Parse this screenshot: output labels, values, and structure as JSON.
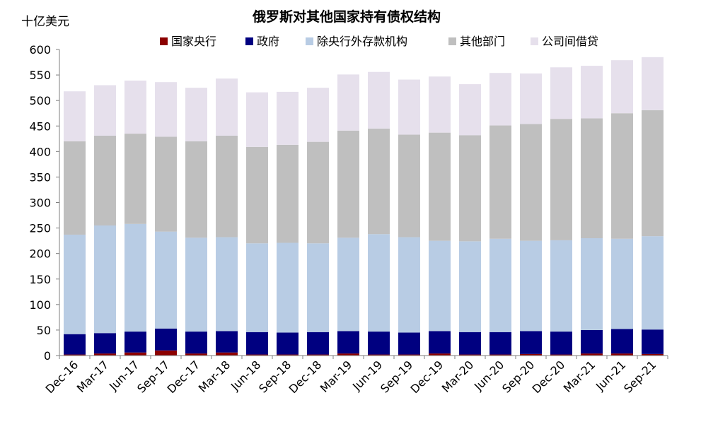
{
  "chart_data": {
    "type": "bar",
    "stacked": true,
    "title": "俄罗斯对其他国家持有债权结构",
    "ylabel": "十亿美元",
    "xlabel": "",
    "ylim": [
      0,
      600
    ],
    "yticks": [
      0,
      50,
      100,
      150,
      200,
      250,
      300,
      350,
      400,
      450,
      500,
      550,
      600
    ],
    "grid": false,
    "legend_position": "top",
    "categories": [
      "Dec-16",
      "Mar-17",
      "Jun-17",
      "Sep-17",
      "Dec-17",
      "Mar-18",
      "Jun-18",
      "Sep-18",
      "Dec-18",
      "Mar-19",
      "Jun-19",
      "Sep-19",
      "Dec-19",
      "Mar-20",
      "Jun-20",
      "Sep-20",
      "Dec-20",
      "Mar-21",
      "Jun-21",
      "Sep-21"
    ],
    "series": [
      {
        "name": "国家央行",
        "color": "#8b0000",
        "values": [
          2,
          4,
          6,
          10,
          4,
          6,
          2,
          2,
          2,
          4,
          2,
          2,
          4,
          2,
          2,
          3,
          2,
          4,
          4,
          3
        ]
      },
      {
        "name": "政府",
        "color": "#000080",
        "values": [
          40,
          40,
          41,
          43,
          43,
          42,
          44,
          43,
          44,
          44,
          45,
          43,
          44,
          44,
          44,
          45,
          45,
          46,
          48,
          48
        ]
      },
      {
        "name": "除央行外存款机构",
        "color": "#b8cce4",
        "values": [
          195,
          211,
          211,
          190,
          184,
          184,
          174,
          176,
          174,
          183,
          191,
          187,
          177,
          178,
          183,
          177,
          179,
          180,
          177,
          183
        ]
      },
      {
        "name": "其他部门",
        "color": "#bfbfbf",
        "values": [
          183,
          176,
          177,
          186,
          189,
          199,
          189,
          192,
          199,
          210,
          207,
          201,
          212,
          208,
          222,
          229,
          238,
          235,
          246,
          247
        ]
      },
      {
        "name": "公司间借贷",
        "color": "#e6e0ec",
        "values": [
          98,
          99,
          104,
          107,
          105,
          112,
          107,
          104,
          106,
          110,
          111,
          108,
          110,
          100,
          103,
          99,
          101,
          103,
          104,
          104
        ]
      }
    ]
  }
}
